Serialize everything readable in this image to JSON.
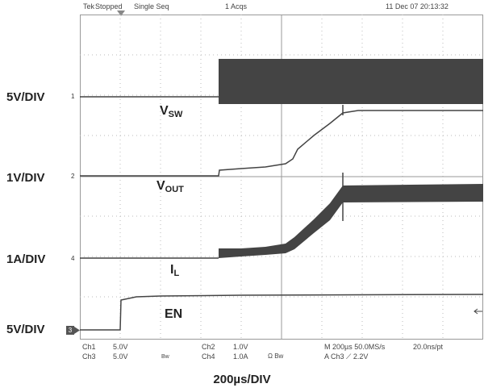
{
  "status_bar": {
    "brand": "Tek",
    "acq_state": "Stopped",
    "acq_mode": "Single Seq",
    "acq_count": "1 Acqs",
    "datetime": "11 Dec 07 20:13:32"
  },
  "scales": {
    "vsw": "5V/DIV",
    "vout": "1V/DIV",
    "il": "1A/DIV",
    "en": "5V/DIV"
  },
  "traces": {
    "vsw": {
      "main": "V",
      "sub": "SW"
    },
    "vout": {
      "main": "V",
      "sub": "OUT"
    },
    "il": {
      "main": "I",
      "sub": "L"
    },
    "en": {
      "main": "EN"
    }
  },
  "channel_markers": {
    "ch1": "1",
    "ch2": "2",
    "ch4": "4",
    "ch3": "3"
  },
  "footer": {
    "ch1_name": "Ch1",
    "ch1_scale": "5.0V",
    "ch3_name": "Ch3",
    "ch3_scale": "5.0V",
    "bw_a": "Bw",
    "ch2_name": "Ch2",
    "ch2_scale": "1.0V",
    "ch4_name": "Ch4",
    "ch4_scale": "1.0A",
    "ohm_bw": "Ω  Bw",
    "bw_b": "Bw",
    "horizontal": "M 200µs 50.0MS/s",
    "trigger": "A  Ch3  ⟋  2.2V",
    "resolution": "20.0ns/pt"
  },
  "timebase_label": "200µs/DIV"
}
